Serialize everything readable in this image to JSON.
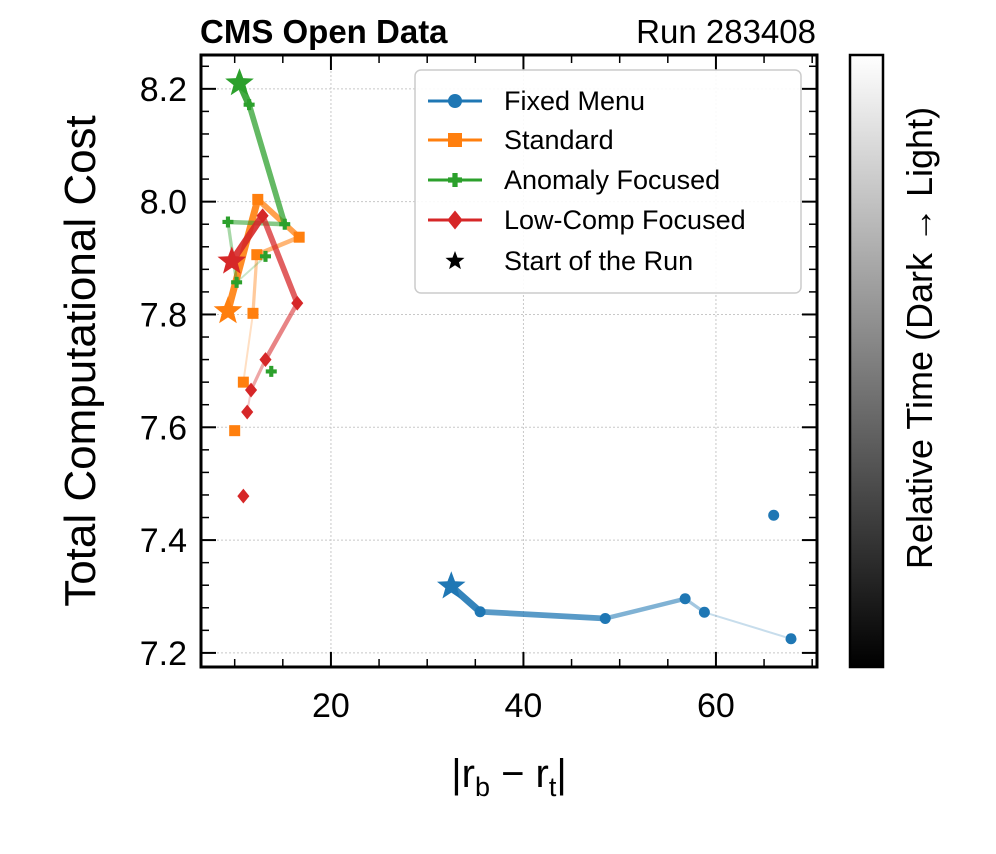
{
  "header": {
    "left": "CMS Open Data",
    "right": "Run 283408"
  },
  "colorbar": {
    "label": "Relative Time (Dark → Light)"
  },
  "legend": {
    "start_label": "Start of the Run"
  },
  "chart_data": {
    "type": "scatter",
    "xlabel": "|r_b − r_t|",
    "ylabel": "Total Computational Cost",
    "xlim": [
      6.5,
      70.5
    ],
    "ylim": [
      7.175,
      8.26
    ],
    "xticks": [
      "20",
      "40",
      "60"
    ],
    "yticks": [
      "7.2",
      "7.4",
      "7.6",
      "7.8",
      "8.0",
      "8.2"
    ],
    "series": [
      {
        "name": "Fixed Menu",
        "color": "#1f77b4",
        "marker": "circle",
        "start": [
          32.5,
          7.318
        ],
        "points": [
          [
            35.5,
            7.273
          ],
          [
            48.5,
            7.261
          ],
          [
            56.8,
            7.296
          ],
          [
            58.8,
            7.272
          ],
          [
            67.8,
            7.225
          ],
          [
            66.0,
            7.444
          ]
        ],
        "path": [
          [
            32.5,
            7.318
          ],
          [
            35.5,
            7.273
          ],
          [
            48.5,
            7.261
          ],
          [
            56.8,
            7.296
          ],
          [
            58.8,
            7.272
          ],
          [
            67.8,
            7.225
          ]
        ]
      },
      {
        "name": "Standard",
        "color": "#ff7f0e",
        "marker": "square",
        "start": [
          9.3,
          7.806
        ],
        "points": [
          [
            10.0,
            7.594
          ],
          [
            10.9,
            7.68
          ],
          [
            11.9,
            7.802
          ],
          [
            12.3,
            7.906
          ],
          [
            12.4,
            8.004
          ],
          [
            16.7,
            7.937
          ]
        ],
        "path": [
          [
            9.3,
            7.806
          ],
          [
            12.4,
            8.004
          ],
          [
            16.7,
            7.937
          ],
          [
            12.3,
            7.906
          ],
          [
            11.9,
            7.802
          ],
          [
            10.9,
            7.68
          ]
        ]
      },
      {
        "name": "Anomaly Focused",
        "color": "#2ca02c",
        "marker": "plus",
        "start": [
          10.5,
          8.21
        ],
        "points": [
          [
            11.5,
            8.172
          ],
          [
            15.2,
            7.96
          ],
          [
            9.3,
            7.964
          ],
          [
            10.2,
            7.857
          ],
          [
            13.2,
            7.903
          ],
          [
            13.8,
            7.699
          ]
        ],
        "path": [
          [
            10.5,
            8.21
          ],
          [
            11.5,
            8.172
          ],
          [
            15.2,
            7.96
          ],
          [
            9.3,
            7.964
          ],
          [
            10.2,
            7.857
          ],
          [
            13.2,
            7.903
          ]
        ]
      },
      {
        "name": "Low-Comp Focused",
        "color": "#d62728",
        "marker": "diamond",
        "start": [
          9.7,
          7.894
        ],
        "points": [
          [
            12.9,
            7.975
          ],
          [
            16.5,
            7.82
          ],
          [
            13.2,
            7.72
          ],
          [
            11.7,
            7.666
          ],
          [
            11.3,
            7.627
          ],
          [
            10.9,
            7.478
          ]
        ],
        "path": [
          [
            9.7,
            7.894
          ],
          [
            12.9,
            7.975
          ],
          [
            16.5,
            7.82
          ],
          [
            13.2,
            7.72
          ],
          [
            11.7,
            7.666
          ],
          [
            11.3,
            7.627
          ]
        ]
      }
    ]
  }
}
